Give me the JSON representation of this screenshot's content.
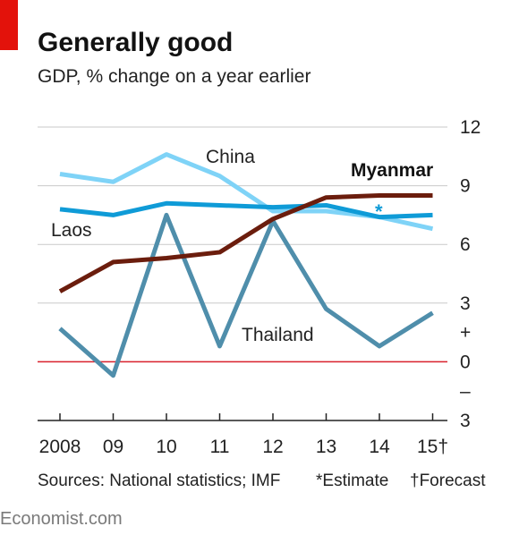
{
  "header": {
    "title": "Generally good",
    "subtitle": "GDP, % change on a year earlier"
  },
  "footer": {
    "sources": "Sources: National statistics; IMF",
    "estimate_note": "*Estimate",
    "forecast_note": "†Forecast",
    "brand": "Economist.com"
  },
  "colors": {
    "accent_red": "#e3120b",
    "china": "#7fd3f7",
    "laos": "#0f9bd7",
    "myanmar": "#6b1d0d",
    "thailand": "#4f8eab",
    "zero_line": "#d9202b",
    "grid": "#c9c9c9"
  },
  "chart_data": {
    "type": "line",
    "title": "Generally good",
    "subtitle": "GDP, % change on a year earlier",
    "x": [
      "2008",
      "09",
      "10",
      "11",
      "12",
      "13",
      "14",
      "15†"
    ],
    "y_ticks": [
      "12",
      "9",
      "6",
      "3",
      "+",
      "0",
      "–",
      "3"
    ],
    "ylim": [
      -3,
      12
    ],
    "grid": true,
    "series": [
      {
        "name": "China",
        "values": [
          9.6,
          9.2,
          10.6,
          9.5,
          7.7,
          7.7,
          7.4,
          6.8
        ]
      },
      {
        "name": "Laos",
        "values": [
          7.8,
          7.5,
          8.1,
          8.0,
          7.9,
          8.0,
          7.4,
          7.5
        ]
      },
      {
        "name": "Myanmar",
        "values": [
          3.6,
          5.1,
          5.3,
          5.6,
          7.3,
          8.4,
          8.5,
          8.5
        ]
      },
      {
        "name": "Thailand",
        "values": [
          1.7,
          -0.7,
          7.5,
          0.8,
          7.2,
          2.7,
          0.8,
          2.5
        ]
      }
    ],
    "annotations": [
      "*"
    ]
  }
}
